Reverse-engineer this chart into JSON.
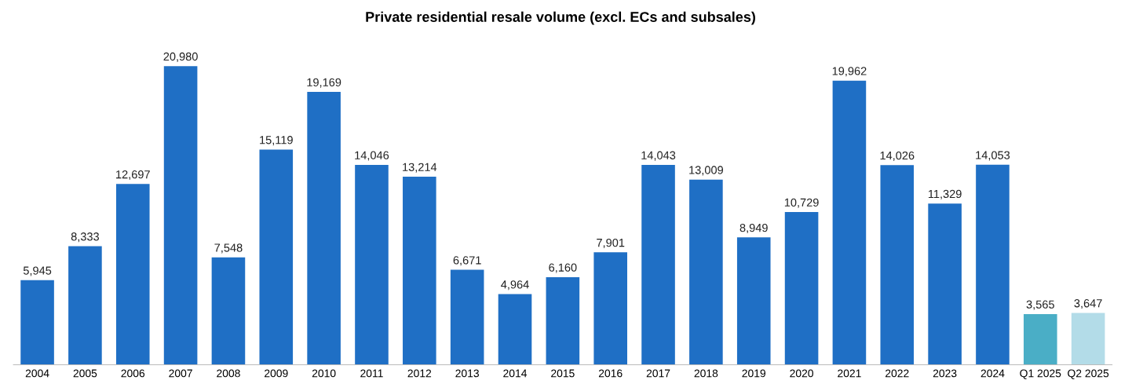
{
  "chart_data": {
    "type": "bar",
    "title": "Private residential resale volume (excl. ECs and subsales)",
    "categories": [
      "2004",
      "2005",
      "2006",
      "2007",
      "2008",
      "2009",
      "2010",
      "2011",
      "2012",
      "2013",
      "2014",
      "2015",
      "2016",
      "2017",
      "2018",
      "2019",
      "2020",
      "2021",
      "2022",
      "2023",
      "2024",
      "Q1 2025",
      "Q2 2025"
    ],
    "values": [
      5945,
      8333,
      12697,
      20980,
      7548,
      15119,
      19169,
      14046,
      13214,
      6671,
      4964,
      6160,
      7901,
      14043,
      13009,
      8949,
      10729,
      19962,
      14026,
      11329,
      14053,
      3565,
      3647
    ],
    "colors": [
      "#1f6fc5",
      "#1f6fc5",
      "#1f6fc5",
      "#1f6fc5",
      "#1f6fc5",
      "#1f6fc5",
      "#1f6fc5",
      "#1f6fc5",
      "#1f6fc5",
      "#1f6fc5",
      "#1f6fc5",
      "#1f6fc5",
      "#1f6fc5",
      "#1f6fc5",
      "#1f6fc5",
      "#1f6fc5",
      "#1f6fc5",
      "#1f6fc5",
      "#1f6fc5",
      "#1f6fc5",
      "#1f6fc5",
      "#4aaec6",
      "#b3dce8"
    ],
    "value_labels": [
      "5,945",
      "8,333",
      "12,697",
      "20,980",
      "7,548",
      "15,119",
      "19,169",
      "14,046",
      "13,214",
      "6,671",
      "4,964",
      "6,160",
      "7,901",
      "14,043",
      "13,009",
      "8,949",
      "10,729",
      "19,962",
      "14,026",
      "11,329",
      "14,053",
      "3,565",
      "3,647"
    ],
    "grid": false,
    "legend": false
  }
}
